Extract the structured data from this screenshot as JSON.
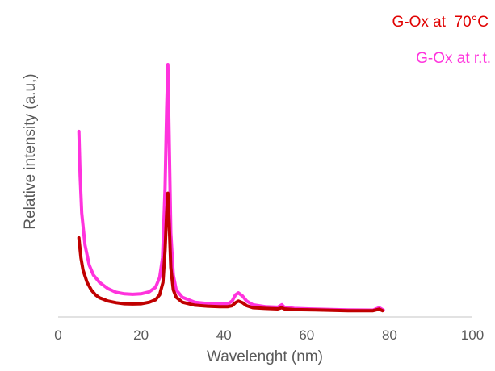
{
  "chart_data": {
    "type": "line",
    "title": "",
    "xlabel": "Wavelenght (nm)",
    "ylabel": "Relative intensity (a.u,)",
    "xlim": [
      0,
      100
    ],
    "ylim": [
      0,
      1
    ],
    "x_ticks": [
      "0",
      "20",
      "40",
      "60",
      "80",
      "100"
    ],
    "grid": false,
    "legend_position": "top-right",
    "series": [
      {
        "name": "G-Ox at  70°C",
        "color": "#c00000",
        "points": [
          [
            5,
            0.3
          ],
          [
            5.5,
            0.22
          ],
          [
            6,
            0.17
          ],
          [
            7,
            0.12
          ],
          [
            8,
            0.09
          ],
          [
            9,
            0.07
          ],
          [
            10,
            0.058
          ],
          [
            12,
            0.045
          ],
          [
            14,
            0.038
          ],
          [
            16,
            0.034
          ],
          [
            18,
            0.033
          ],
          [
            20,
            0.034
          ],
          [
            22,
            0.04
          ],
          [
            23.5,
            0.05
          ],
          [
            24.5,
            0.07
          ],
          [
            25.3,
            0.12
          ],
          [
            25.8,
            0.25
          ],
          [
            26.2,
            0.4
          ],
          [
            26.5,
            0.48
          ],
          [
            26.8,
            0.36
          ],
          [
            27.2,
            0.18
          ],
          [
            27.8,
            0.09
          ],
          [
            28.5,
            0.06
          ],
          [
            30,
            0.04
          ],
          [
            33,
            0.028
          ],
          [
            36,
            0.024
          ],
          [
            39,
            0.022
          ],
          [
            41,
            0.022
          ],
          [
            42,
            0.026
          ],
          [
            42.8,
            0.038
          ],
          [
            43.5,
            0.045
          ],
          [
            44.5,
            0.038
          ],
          [
            45.5,
            0.026
          ],
          [
            47,
            0.018
          ],
          [
            50,
            0.015
          ],
          [
            53,
            0.013
          ],
          [
            54,
            0.018
          ],
          [
            54.6,
            0.013
          ],
          [
            57,
            0.01
          ],
          [
            62,
            0.009
          ],
          [
            70,
            0.006
          ],
          [
            76,
            0.006
          ],
          [
            77.5,
            0.012
          ],
          [
            78.3,
            0.006
          ]
        ]
      },
      {
        "name": "G-Ox at r.t.",
        "color": "#ff33dd",
        "points": [
          [
            5,
            0.73
          ],
          [
            5.3,
            0.55
          ],
          [
            5.7,
            0.4
          ],
          [
            6.5,
            0.27
          ],
          [
            7.5,
            0.19
          ],
          [
            8.5,
            0.15
          ],
          [
            10,
            0.12
          ],
          [
            12,
            0.095
          ],
          [
            14,
            0.08
          ],
          [
            16,
            0.074
          ],
          [
            18,
            0.072
          ],
          [
            20,
            0.074
          ],
          [
            22,
            0.082
          ],
          [
            23.5,
            0.1
          ],
          [
            24.5,
            0.14
          ],
          [
            25.2,
            0.22
          ],
          [
            25.8,
            0.5
          ],
          [
            26.2,
            0.82
          ],
          [
            26.5,
            1.0
          ],
          [
            26.8,
            0.7
          ],
          [
            27.2,
            0.32
          ],
          [
            27.8,
            0.15
          ],
          [
            28.5,
            0.09
          ],
          [
            30,
            0.06
          ],
          [
            33,
            0.04
          ],
          [
            36,
            0.035
          ],
          [
            39,
            0.033
          ],
          [
            41,
            0.034
          ],
          [
            42,
            0.045
          ],
          [
            42.8,
            0.07
          ],
          [
            43.5,
            0.078
          ],
          [
            44.5,
            0.065
          ],
          [
            45.5,
            0.045
          ],
          [
            47,
            0.03
          ],
          [
            50,
            0.022
          ],
          [
            53,
            0.02
          ],
          [
            54,
            0.03
          ],
          [
            54.6,
            0.02
          ],
          [
            57,
            0.015
          ],
          [
            62,
            0.012
          ],
          [
            70,
            0.009
          ],
          [
            76,
            0.008
          ],
          [
            77.5,
            0.018
          ],
          [
            78.5,
            0.008
          ]
        ]
      }
    ]
  }
}
